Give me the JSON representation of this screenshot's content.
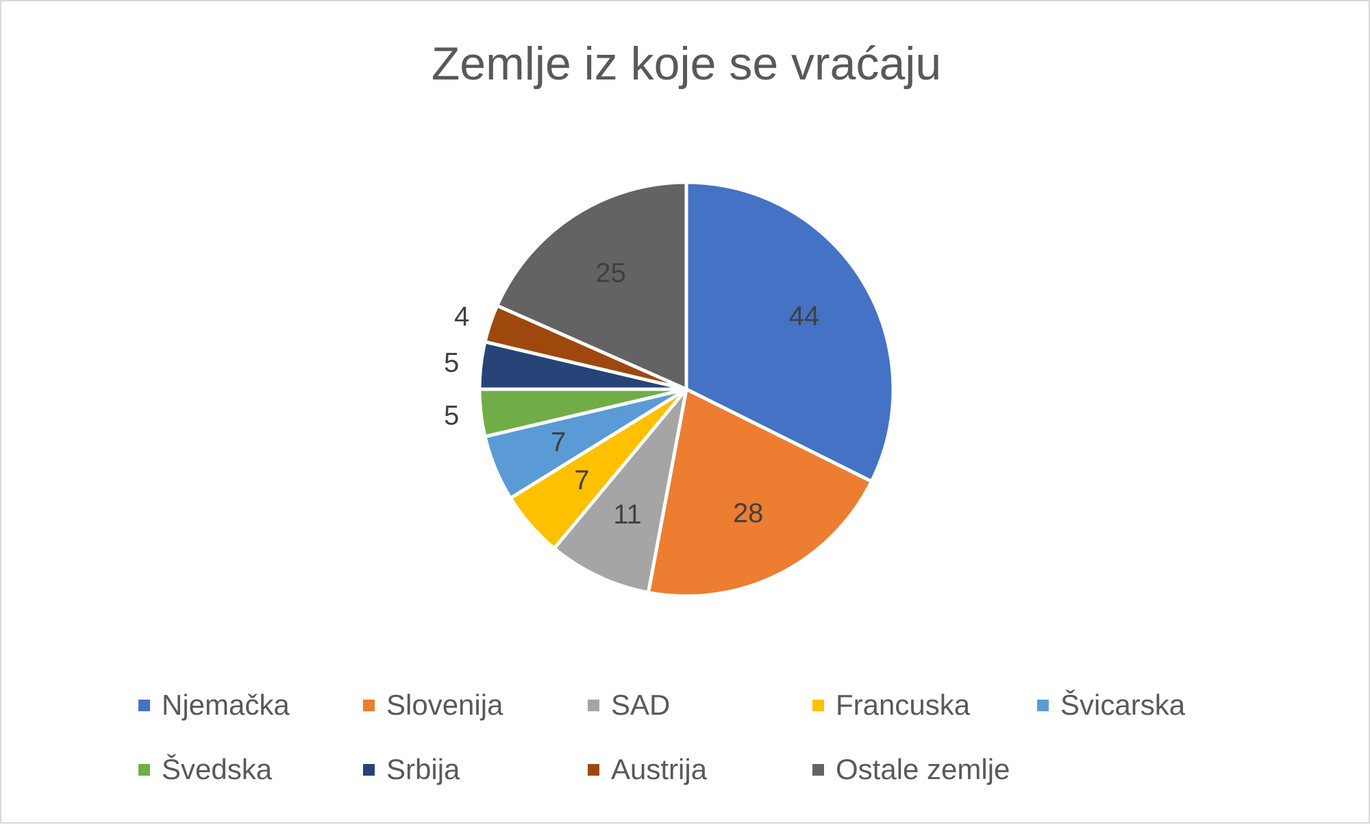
{
  "chart_data": {
    "type": "pie",
    "title": "Zemlje iz koje se vraćaju",
    "categories": [
      "Njemačka",
      "Slovenija",
      "SAD",
      "Francuska",
      "Švicarska",
      "Švedska",
      "Srbija",
      "Austrija",
      "Ostale zemlje"
    ],
    "values": [
      44,
      28,
      11,
      7,
      7,
      5,
      5,
      4,
      25
    ],
    "colors": [
      "#4472C4",
      "#ED7D31",
      "#A5A5A5",
      "#FFC000",
      "#5B9BD5",
      "#70AD47",
      "#264478",
      "#9E480E",
      "#636363"
    ],
    "legend_position": "bottom",
    "labels_outside": [
      "Švedska",
      "Srbija",
      "Austrija"
    ]
  }
}
